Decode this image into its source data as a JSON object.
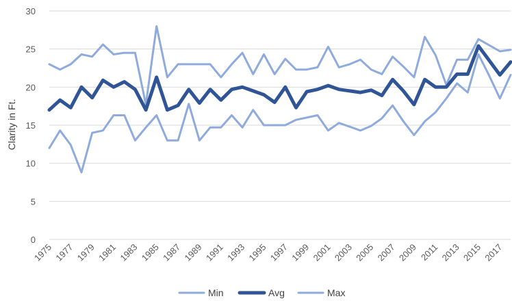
{
  "chart_data": {
    "type": "line",
    "title": "",
    "xlabel": "",
    "ylabel": "Clarity in Ft.",
    "ylim": [
      0,
      30
    ],
    "yticks": [
      0,
      5,
      10,
      15,
      20,
      25,
      30
    ],
    "grid": "horizontal",
    "legend_position": "bottom",
    "x": [
      1975,
      1976,
      1977,
      1978,
      1979,
      1980,
      1981,
      1982,
      1983,
      1984,
      1985,
      1986,
      1987,
      1988,
      1989,
      1990,
      1991,
      1992,
      1993,
      1994,
      1995,
      1996,
      1997,
      1998,
      1999,
      2000,
      2001,
      2002,
      2003,
      2004,
      2005,
      2006,
      2007,
      2008,
      2009,
      2010,
      2011,
      2012,
      2013,
      2014,
      2015,
      2016,
      2017,
      2018
    ],
    "x_tick_labels": [
      "1975",
      "1977",
      "1979",
      "1981",
      "1983",
      "1985",
      "1987",
      "1989",
      "1991",
      "1993",
      "1995",
      "1997",
      "1999",
      "2001",
      "2003",
      "2005",
      "2007",
      "2009",
      "2011",
      "2013",
      "2015",
      "2017"
    ],
    "series": [
      {
        "name": "Min",
        "color": "#8faadc",
        "values": [
          12.0,
          14.3,
          12.4,
          8.8,
          14.0,
          14.3,
          16.3,
          16.3,
          13.0,
          14.7,
          16.3,
          13.0,
          13.0,
          17.8,
          13.0,
          14.7,
          14.7,
          16.3,
          14.7,
          17.0,
          15.0,
          15.0,
          15.0,
          15.7,
          16.0,
          16.3,
          14.3,
          15.3,
          14.8,
          14.3,
          14.9,
          15.9,
          17.6,
          15.5,
          13.7,
          15.5,
          16.7,
          18.5,
          20.5,
          19.3,
          24.3,
          21.5,
          18.5,
          21.6
        ]
      },
      {
        "name": "Avg",
        "color": "#2f5597",
        "values": [
          17.0,
          18.3,
          17.3,
          20.0,
          18.6,
          20.9,
          20.0,
          20.7,
          19.7,
          17.0,
          21.3,
          17.0,
          17.6,
          19.7,
          17.9,
          19.7,
          18.3,
          19.7,
          20.0,
          19.5,
          19.0,
          18.0,
          20.0,
          17.3,
          19.4,
          19.7,
          20.2,
          19.7,
          19.5,
          19.3,
          19.6,
          18.9,
          21.0,
          19.5,
          17.7,
          21.0,
          20.0,
          20.0,
          21.7,
          21.7,
          25.4,
          23.5,
          21.6,
          23.3
        ]
      },
      {
        "name": "Max",
        "color": "#8faadc",
        "values": [
          23.0,
          22.3,
          23.0,
          24.3,
          24.0,
          25.6,
          24.3,
          24.5,
          24.5,
          17.7,
          28.0,
          21.3,
          23.0,
          23.0,
          23.0,
          23.0,
          21.3,
          23.0,
          24.5,
          21.7,
          24.3,
          21.7,
          23.7,
          22.3,
          22.3,
          22.6,
          25.3,
          22.6,
          23.0,
          23.6,
          22.3,
          21.7,
          24.0,
          22.7,
          21.3,
          26.6,
          24.2,
          20.3,
          23.6,
          23.6,
          26.3,
          25.5,
          24.7,
          24.9
        ]
      }
    ]
  }
}
